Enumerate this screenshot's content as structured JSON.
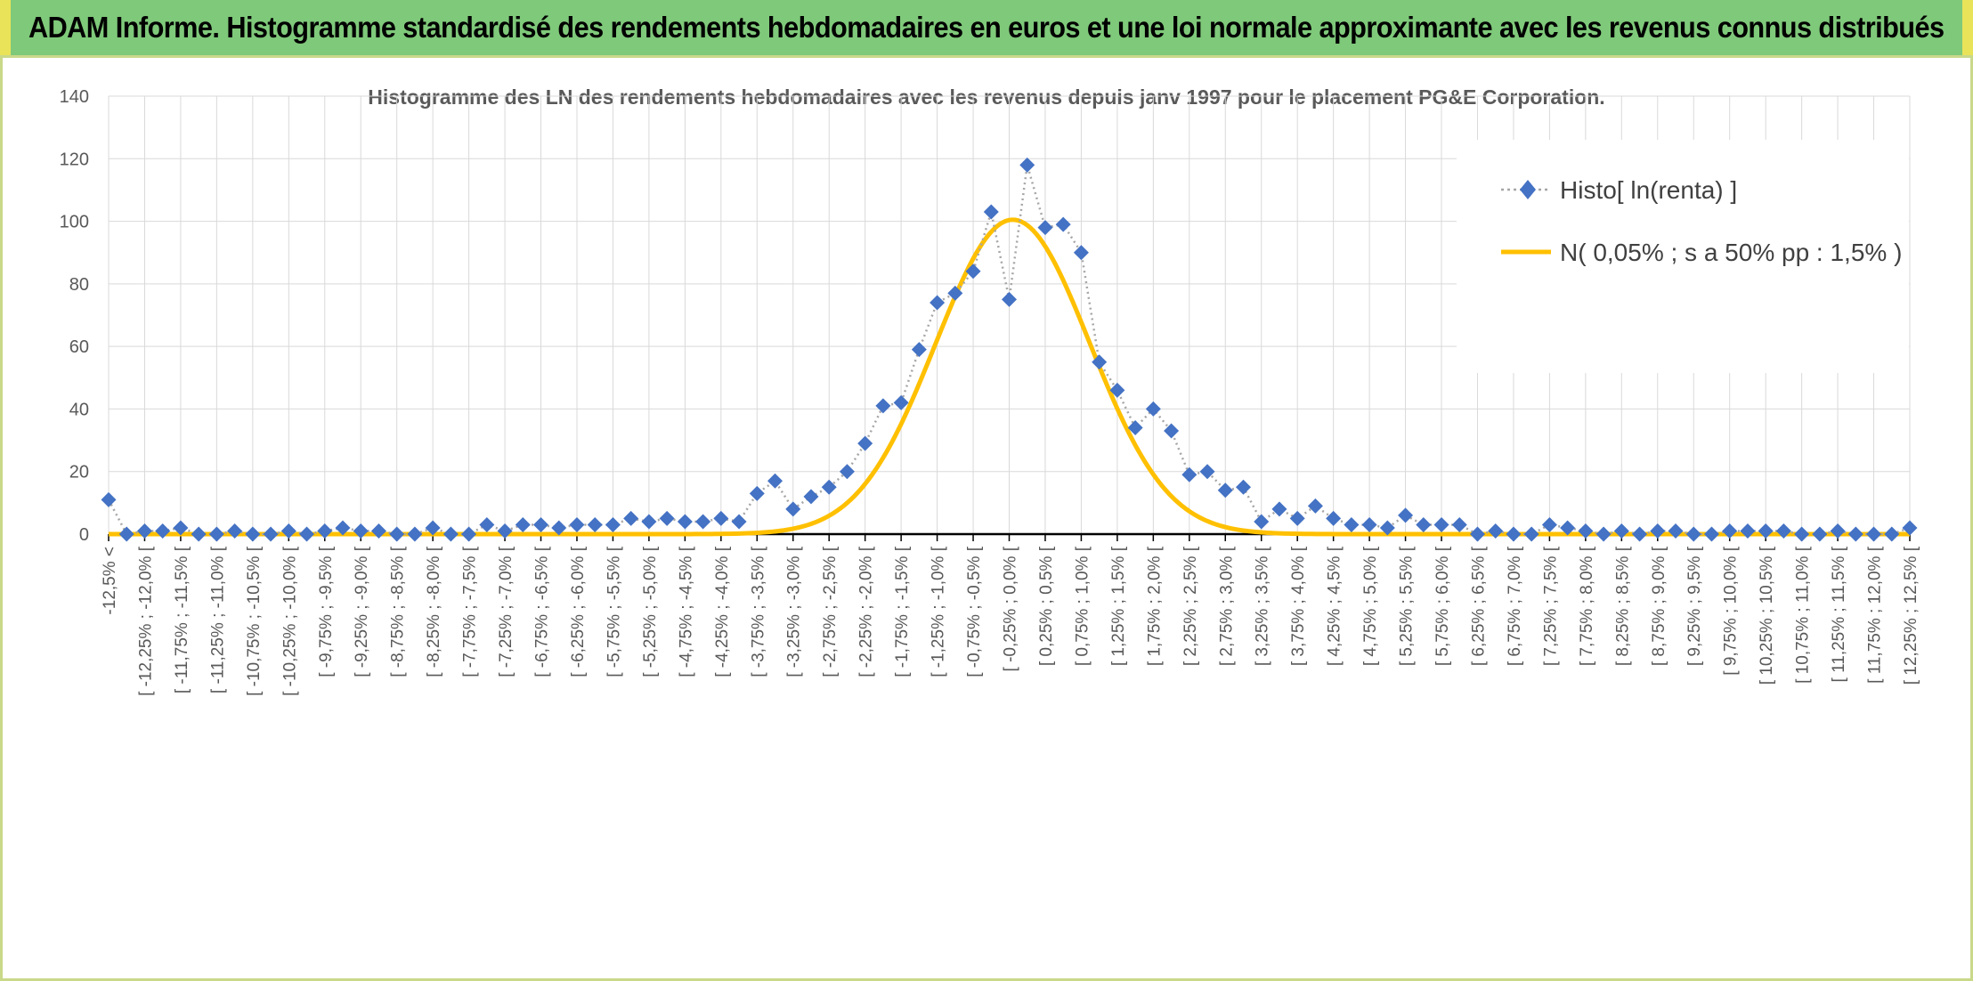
{
  "page": {
    "banner_title": "ADAM Informe. Histogramme standardisé des rendements hebdomadaires en euros et une loi normale approximante avec les revenus connus distribués"
  },
  "chart_data": {
    "type": "line",
    "title": "Histogramme des LN des rendements hebdomadaires avec les revenus depuis janv 1997 pour le placement PG&E Corporation.",
    "xlabel": "",
    "ylabel": "",
    "ylim": [
      0,
      140
    ],
    "yticks": [
      "0",
      "20",
      "40",
      "60",
      "80",
      "100",
      "120",
      "140"
    ],
    "grid": true,
    "legend_position": "top-right",
    "categories": [
      "-12,5% <",
      "[ -12,25% ; -12,0% [",
      "[ -11,75% ; -11,5% [",
      "[ -11,25% ; -11,0% [",
      "[ -10,75% ; -10,5% [",
      "[ -10,25% ; -10,0% [",
      "[ -9,75% ; -9,5% [",
      "[ -9,25% ; -9,0% [",
      "[ -8,75% ; -8,5% [",
      "[ -8,25% ; -8,0% [",
      "[ -7,75% ; -7,5% [",
      "[ -7,25% ; -7,0% [",
      "[ -6,75% ; -6,5% [",
      "[ -6,25% ; -6,0% [",
      "[ -5,75% ; -5,5% [",
      "[ -5,25% ; -5,0% [",
      "[ -4,75% ; -4,5% [",
      "[ -4,25% ; -4,0% [",
      "[ -3,75% ; -3,5% [",
      "[ -3,25% ; -3,0% [",
      "[ -2,75% ; -2,5% [",
      "[ -2,25% ; -2,0% [",
      "[ -1,75% ; -1,5% [",
      "[ -1,25% ; -1,0% [",
      "[ -0,75% ; -0,5% [",
      "[ -0,25% ; 0,0% [",
      "[ 0,25% ; 0,5% [",
      "[ 0,75% ; 1,0% [",
      "[ 1,25% ; 1,5% [",
      "[ 1,75% ; 2,0% [",
      "[ 2,25% ; 2,5% [",
      "[ 2,75% ; 3,0% [",
      "[ 3,25% ; 3,5% [",
      "[ 3,75% ; 4,0% [",
      "[ 4,25% ; 4,5% [",
      "[ 4,75% ; 5,0% [",
      "[ 5,25% ; 5,5% [",
      "[ 5,75% ; 6,0% [",
      "[ 6,25% ; 6,5% [",
      "[ 6,75% ; 7,0% [",
      "[ 7,25% ; 7,5% [",
      "[ 7,75% ; 8,0% [",
      "[ 8,25% ; 8,5% [",
      "[ 8,75% ; 9,0% [",
      "[ 9,25% ; 9,5% [",
      "[ 9,75% ; 10,0% [",
      "[ 10,25% ; 10,5% [",
      "[ 10,75% ; 11,0% [",
      "[ 11,25% ; 11,5% [",
      "[ 11,75% ; 12,0% [",
      "[ 12,25% ; 12,5% ["
    ],
    "x": [
      -12.5,
      -12.25,
      -12.0,
      -11.75,
      -11.5,
      -11.25,
      -11.0,
      -10.75,
      -10.5,
      -10.25,
      -10.0,
      -9.75,
      -9.5,
      -9.25,
      -9.0,
      -8.75,
      -8.5,
      -8.25,
      -8.0,
      -7.75,
      -7.5,
      -7.25,
      -7.0,
      -6.75,
      -6.5,
      -6.25,
      -6.0,
      -5.75,
      -5.5,
      -5.25,
      -5.0,
      -4.75,
      -4.5,
      -4.25,
      -4.0,
      -3.75,
      -3.5,
      -3.25,
      -3.0,
      -2.75,
      -2.5,
      -2.25,
      -2.0,
      -1.75,
      -1.5,
      -1.25,
      -1.0,
      -0.75,
      -0.5,
      -0.25,
      0.0,
      0.25,
      0.5,
      0.75,
      1.0,
      1.25,
      1.5,
      1.75,
      2.0,
      2.25,
      2.5,
      2.75,
      3.0,
      3.25,
      3.5,
      3.75,
      4.0,
      4.25,
      4.5,
      4.75,
      5.0,
      5.25,
      5.5,
      5.75,
      6.0,
      6.25,
      6.5,
      6.75,
      7.0,
      7.25,
      7.5,
      7.75,
      8.0,
      8.25,
      8.5,
      8.75,
      9.0,
      9.25,
      9.5,
      9.75,
      10.0,
      10.25,
      10.5,
      10.75,
      11.0,
      11.25,
      11.5,
      11.75,
      12.0,
      12.25,
      12.5
    ],
    "series": [
      {
        "name": "Histo[ ln(renta) ]",
        "style": "dotted-diamond",
        "color": "#4472c4",
        "line_color": "#a6a6a6",
        "values": [
          11,
          0,
          1,
          1,
          2,
          0,
          0,
          1,
          0,
          0,
          1,
          0,
          1,
          2,
          1,
          1,
          0,
          0,
          2,
          0,
          0,
          3,
          1,
          3,
          3,
          2,
          3,
          3,
          3,
          5,
          4,
          5,
          4,
          4,
          5,
          4,
          13,
          17,
          8,
          12,
          15,
          20,
          29,
          41,
          42,
          59,
          74,
          77,
          84,
          103,
          75,
          118,
          98,
          99,
          90,
          55,
          46,
          34,
          40,
          33,
          19,
          20,
          14,
          15,
          4,
          8,
          5,
          9,
          5,
          3,
          3,
          2,
          6,
          3,
          3,
          3,
          0,
          1,
          0,
          0,
          3,
          2,
          1,
          0,
          1,
          0,
          1,
          1,
          0,
          0,
          1,
          1,
          1,
          1,
          0,
          0,
          1,
          0,
          0,
          0,
          2
        ]
      },
      {
        "name": "N( 0,05% ; s a 50% pp : 1,5% )",
        "style": "smooth-line",
        "color": "#ffc000",
        "mean": 0.05,
        "peak": 100.5,
        "sigma": 1.07
      }
    ]
  }
}
